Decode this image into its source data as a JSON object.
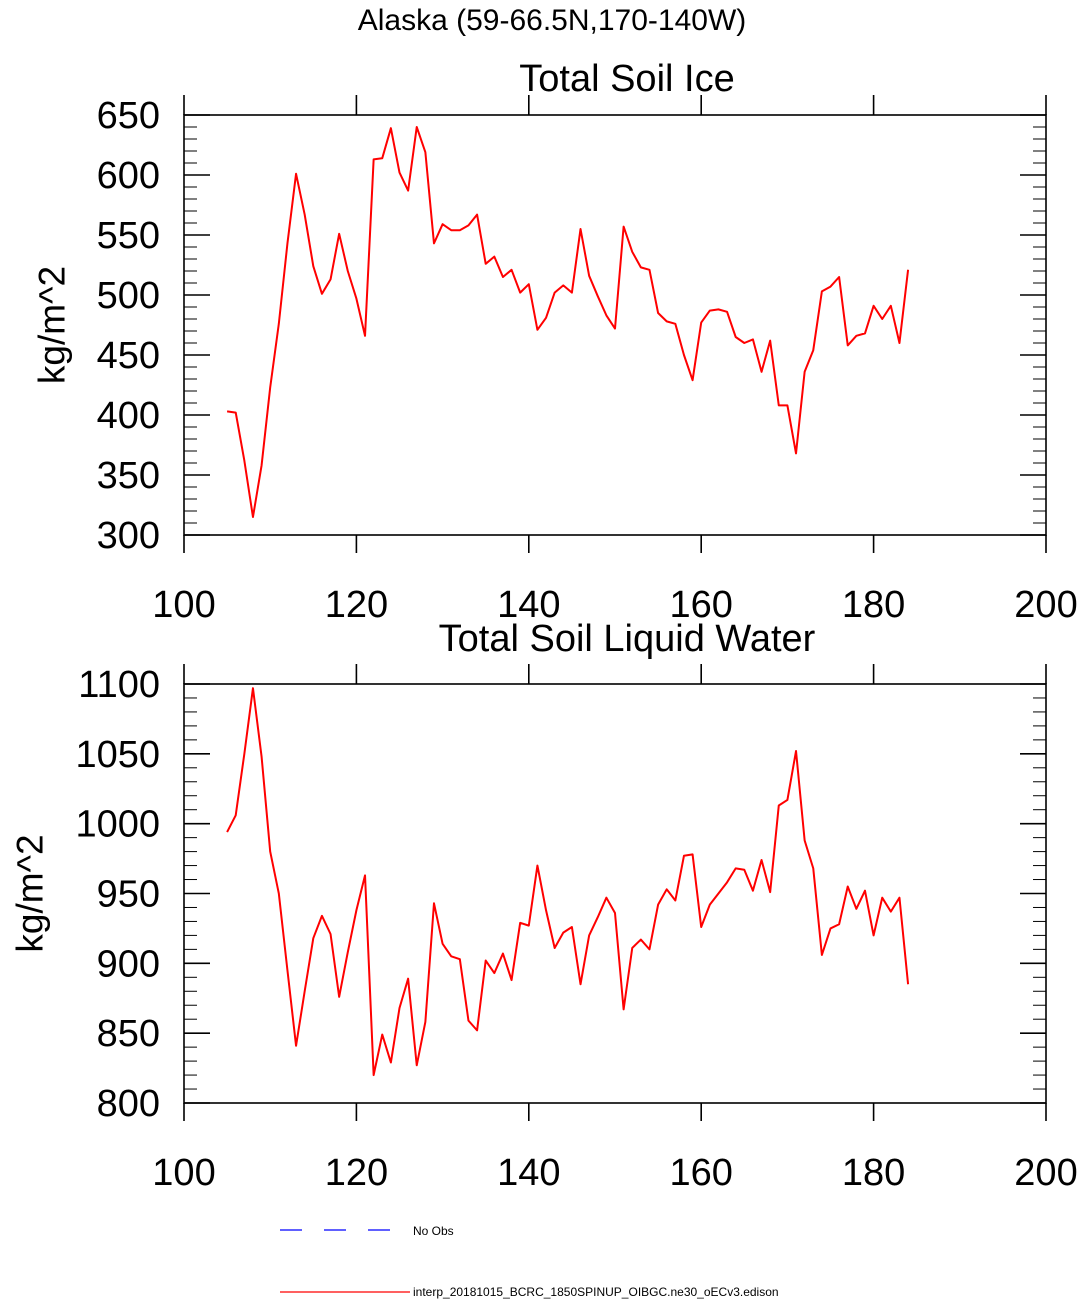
{
  "figure": {
    "title": "Alaska (59-66.5N,170-140W)"
  },
  "chart_data": [
    {
      "type": "line",
      "title": "Total Soil Ice",
      "xlabel": "",
      "ylabel": "kg/m^2",
      "xlim": [
        100,
        200
      ],
      "ylim": [
        300,
        650
      ],
      "xticks": [
        100,
        120,
        140,
        160,
        180,
        200
      ],
      "yticks": [
        300,
        350,
        400,
        450,
        500,
        550,
        600,
        650
      ],
      "grid": false,
      "series": [
        {
          "name": "interp_20181015_BCRC_1850SPINUP_OIBGC.ne30_oECv3.edison",
          "color": "#ff0000",
          "x": [
            105,
            106,
            107,
            108,
            109,
            110,
            111,
            112,
            113,
            114,
            115,
            116,
            117,
            118,
            119,
            120,
            121,
            122,
            123,
            124,
            125,
            126,
            127,
            128,
            129,
            130,
            131,
            132,
            133,
            134,
            135,
            136,
            137,
            138,
            139,
            140,
            141,
            142,
            143,
            144,
            145,
            146,
            147,
            148,
            149,
            150,
            151,
            152,
            153,
            154,
            155,
            156,
            157,
            158,
            159,
            160,
            161,
            162,
            163,
            164,
            165,
            166,
            167,
            168,
            169,
            170,
            171,
            172,
            173,
            174,
            175,
            176,
            177,
            178,
            179,
            180,
            181,
            182,
            183,
            184
          ],
          "y": [
            403,
            402,
            362,
            315,
            358,
            423,
            476,
            543,
            601,
            567,
            524,
            501,
            513,
            551,
            520,
            497,
            466,
            613,
            614,
            639,
            602,
            587,
            640,
            619,
            543,
            559,
            554,
            554,
            558,
            567,
            526,
            532,
            515,
            521,
            502,
            509,
            471,
            481,
            502,
            508,
            502,
            555,
            516,
            499,
            483,
            472,
            557,
            536,
            523,
            521,
            485,
            478,
            476,
            450,
            429,
            477,
            487,
            488,
            486,
            465,
            460,
            463,
            436,
            462,
            408,
            408,
            368,
            436,
            454,
            503,
            507,
            515,
            458,
            466,
            468,
            491,
            480,
            491,
            460,
            521
          ]
        }
      ]
    },
    {
      "type": "line",
      "title": "Total Soil Liquid Water",
      "xlabel": "",
      "ylabel": "kg/m^2",
      "xlim": [
        100,
        200
      ],
      "ylim": [
        800,
        1100
      ],
      "xticks": [
        100,
        120,
        140,
        160,
        180,
        200
      ],
      "yticks": [
        800,
        850,
        900,
        950,
        1000,
        1050,
        1100
      ],
      "grid": false,
      "series": [
        {
          "name": "interp_20181015_BCRC_1850SPINUP_OIBGC.ne30_oECv3.edison",
          "color": "#ff0000",
          "x": [
            105,
            106,
            107,
            108,
            109,
            110,
            111,
            112,
            113,
            114,
            115,
            116,
            117,
            118,
            119,
            120,
            121,
            122,
            123,
            124,
            125,
            126,
            127,
            128,
            129,
            130,
            131,
            132,
            133,
            134,
            135,
            136,
            137,
            138,
            139,
            140,
            141,
            142,
            143,
            144,
            145,
            146,
            147,
            148,
            149,
            150,
            151,
            152,
            153,
            154,
            155,
            156,
            157,
            158,
            159,
            160,
            161,
            162,
            163,
            164,
            165,
            166,
            167,
            168,
            169,
            170,
            171,
            172,
            173,
            174,
            175,
            176,
            177,
            178,
            179,
            180,
            181,
            182,
            183,
            184
          ],
          "y": [
            994,
            1006,
            1050,
            1097,
            1048,
            980,
            950,
            895,
            841,
            880,
            918,
            934,
            921,
            876,
            908,
            938,
            963,
            820,
            849,
            829,
            868,
            889,
            827,
            858,
            943,
            914,
            905,
            903,
            859,
            852,
            902,
            893,
            907,
            888,
            929,
            927,
            970,
            938,
            911,
            922,
            926,
            885,
            920,
            933,
            947,
            936,
            867,
            911,
            917,
            910,
            942,
            953,
            945,
            977,
            978,
            926,
            942,
            950,
            958,
            968,
            967,
            952,
            974,
            951,
            1013,
            1017,
            1052,
            988,
            968,
            906,
            925,
            928,
            955,
            939,
            952,
            920,
            947,
            937,
            947,
            885
          ]
        }
      ]
    }
  ],
  "legend": {
    "placement": "bottom",
    "entries": [
      {
        "label": "No Obs",
        "color": "#0000ff",
        "style": "dashed"
      },
      {
        "label": "interp_20181015_BCRC_1850SPINUP_OIBGC.ne30_oECv3.edison",
        "color": "#ff0000",
        "style": "solid"
      }
    ]
  }
}
